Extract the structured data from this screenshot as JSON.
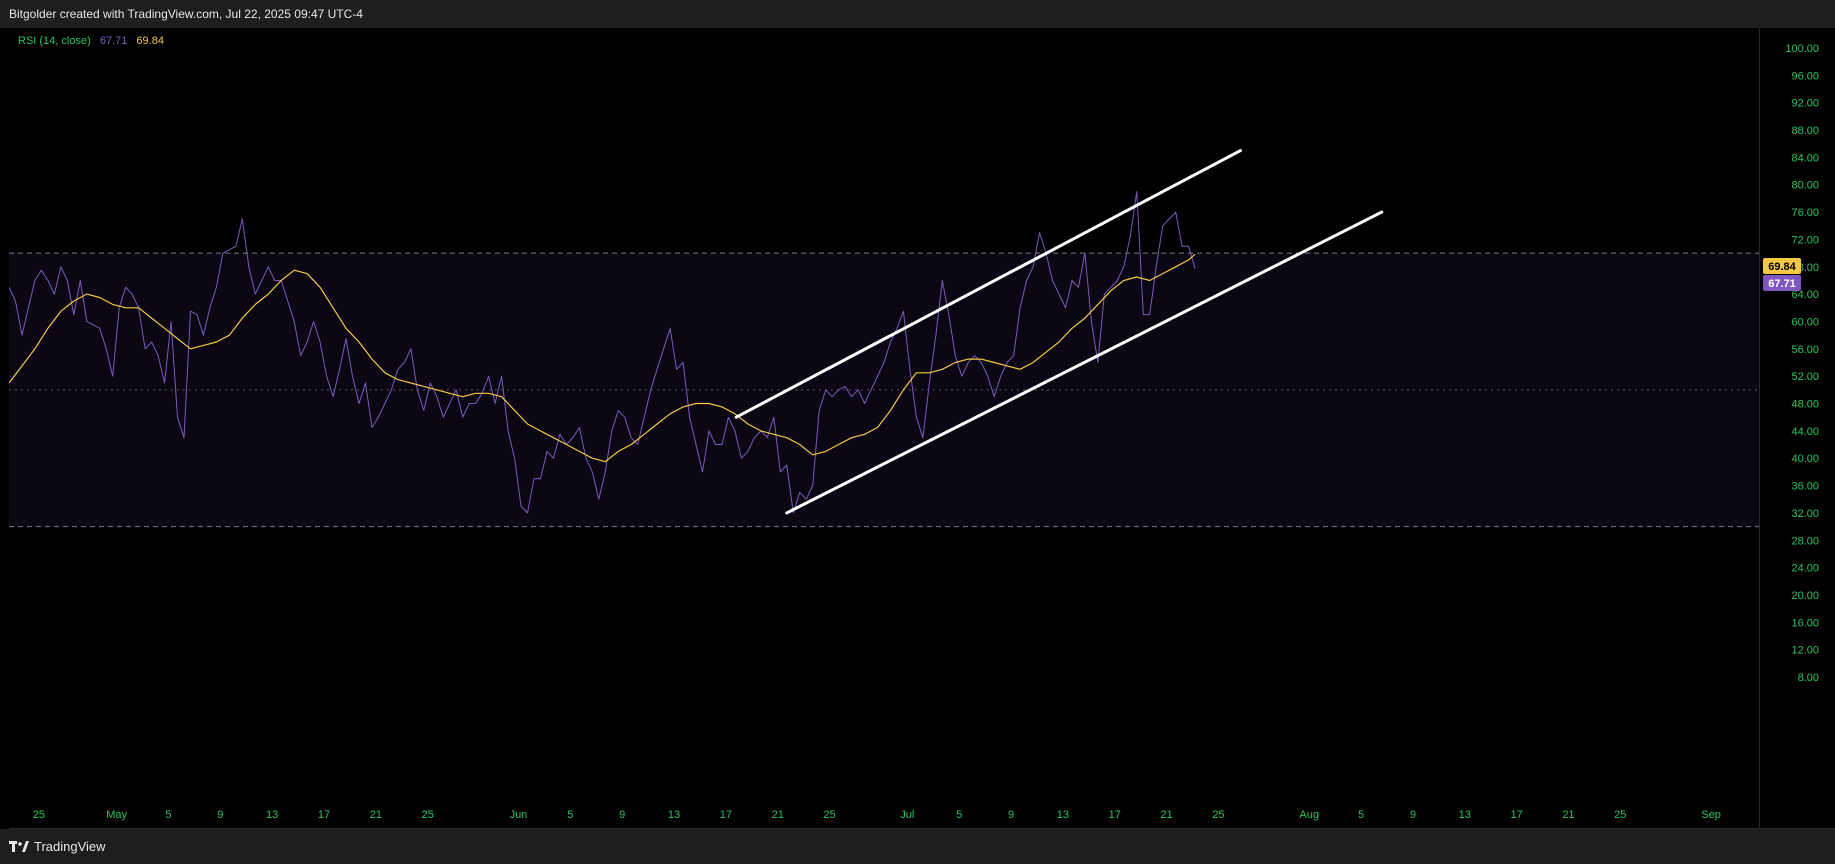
{
  "header": {
    "caption": "Bitgolder created with TradingView.com, Jul 22, 2025 09:47 UTC-4"
  },
  "footer": {
    "brand": "TradingView"
  },
  "colors": {
    "rsi": "#7e57c2",
    "ma": "#f5c842",
    "axis_text": "#22c55e",
    "channel": "#ffffff",
    "band_fill": "#0b0814",
    "ma_badge": "#f5c842",
    "rsi_badge": "#7e57c2"
  },
  "legend": {
    "indicator": "RSI (14, close)",
    "rsi_value": "67.71",
    "ma_value": "69.84"
  },
  "chart_data": {
    "type": "line",
    "ylim": [
      8,
      100
    ],
    "y_ticks": [
      "100.00",
      "96.00",
      "92.00",
      "88.00",
      "84.00",
      "80.00",
      "76.00",
      "72.00",
      "68.00",
      "64.00",
      "60.00",
      "56.00",
      "52.00",
      "48.00",
      "44.00",
      "40.00",
      "36.00",
      "32.00",
      "28.00",
      "24.00",
      "20.00",
      "16.00",
      "12.00",
      "8.00"
    ],
    "x_ticks": [
      {
        "label": "25",
        "day": 0
      },
      {
        "label": "May",
        "day": 6
      },
      {
        "label": "5",
        "day": 10
      },
      {
        "label": "9",
        "day": 14
      },
      {
        "label": "13",
        "day": 18
      },
      {
        "label": "17",
        "day": 22
      },
      {
        "label": "21",
        "day": 26
      },
      {
        "label": "25",
        "day": 30
      },
      {
        "label": "Jun",
        "day": 37
      },
      {
        "label": "5",
        "day": 41
      },
      {
        "label": "9",
        "day": 45
      },
      {
        "label": "13",
        "day": 49
      },
      {
        "label": "17",
        "day": 53
      },
      {
        "label": "21",
        "day": 57
      },
      {
        "label": "25",
        "day": 61
      },
      {
        "label": "Jul",
        "day": 67
      },
      {
        "label": "5",
        "day": 71
      },
      {
        "label": "9",
        "day": 75
      },
      {
        "label": "13",
        "day": 79
      },
      {
        "label": "17",
        "day": 83
      },
      {
        "label": "21",
        "day": 87
      },
      {
        "label": "25",
        "day": 91
      },
      {
        "label": "Aug",
        "day": 98
      },
      {
        "label": "5",
        "day": 102
      },
      {
        "label": "9",
        "day": 106
      },
      {
        "label": "13",
        "day": 110
      },
      {
        "label": "17",
        "day": 114
      },
      {
        "label": "21",
        "day": 118
      },
      {
        "label": "25",
        "day": 122
      },
      {
        "label": "Sep",
        "day": 129
      }
    ],
    "x_domain": [
      -2.3,
      132.7
    ],
    "levels": {
      "upper": 70,
      "middle": 50,
      "lower": 30
    },
    "series": [
      {
        "key": "rsi",
        "values": [
          [
            -2.3,
            65
          ],
          [
            -1.8,
            63
          ],
          [
            -1.3,
            58
          ],
          [
            -0.8,
            62
          ],
          [
            -0.3,
            66
          ],
          [
            0.2,
            67.5
          ],
          [
            0.7,
            66
          ],
          [
            1.2,
            64
          ],
          [
            1.7,
            68
          ],
          [
            2.2,
            66
          ],
          [
            2.7,
            61
          ],
          [
            3.2,
            66
          ],
          [
            3.7,
            60
          ],
          [
            4.2,
            59.5
          ],
          [
            4.7,
            59
          ],
          [
            5.2,
            56
          ],
          [
            5.7,
            52
          ],
          [
            6.2,
            62
          ],
          [
            6.7,
            65
          ],
          [
            7.2,
            64
          ],
          [
            7.7,
            62
          ],
          [
            8.2,
            56
          ],
          [
            8.7,
            57
          ],
          [
            9.2,
            55
          ],
          [
            9.7,
            51
          ],
          [
            10.2,
            60
          ],
          [
            10.7,
            46
          ],
          [
            11.2,
            43
          ],
          [
            11.7,
            61.5
          ],
          [
            12.2,
            61
          ],
          [
            12.7,
            58
          ],
          [
            13.2,
            62
          ],
          [
            13.7,
            65
          ],
          [
            14.2,
            70
          ],
          [
            14.7,
            70.5
          ],
          [
            15.2,
            71
          ],
          [
            15.7,
            75
          ],
          [
            16.2,
            68
          ],
          [
            16.7,
            64
          ],
          [
            17.2,
            66
          ],
          [
            17.7,
            68
          ],
          [
            18.2,
            66
          ],
          [
            18.7,
            66
          ],
          [
            19.2,
            63
          ],
          [
            19.7,
            60
          ],
          [
            20.2,
            55
          ],
          [
            20.7,
            57
          ],
          [
            21.2,
            60
          ],
          [
            21.7,
            57
          ],
          [
            22.2,
            52
          ],
          [
            22.7,
            49
          ],
          [
            23.2,
            53
          ],
          [
            23.7,
            57.5
          ],
          [
            24.2,
            52
          ],
          [
            24.7,
            48
          ],
          [
            25.2,
            51
          ],
          [
            25.7,
            44.5
          ],
          [
            26.2,
            46
          ],
          [
            26.7,
            48
          ],
          [
            27.2,
            50
          ],
          [
            27.7,
            53
          ],
          [
            28.2,
            54
          ],
          [
            28.7,
            56
          ],
          [
            29.2,
            50
          ],
          [
            29.7,
            47
          ],
          [
            30.2,
            51
          ],
          [
            30.7,
            49
          ],
          [
            31.2,
            46
          ],
          [
            31.7,
            48
          ],
          [
            32.2,
            50
          ],
          [
            32.7,
            46
          ],
          [
            33.2,
            48
          ],
          [
            33.7,
            48
          ],
          [
            34.2,
            49.5
          ],
          [
            34.7,
            52
          ],
          [
            35.2,
            48
          ],
          [
            35.7,
            52
          ],
          [
            36.2,
            44
          ],
          [
            36.7,
            40
          ],
          [
            37.2,
            33
          ],
          [
            37.7,
            32
          ],
          [
            38.2,
            37
          ],
          [
            38.7,
            37
          ],
          [
            39.2,
            41
          ],
          [
            39.7,
            40
          ],
          [
            40.2,
            43.5
          ],
          [
            40.7,
            42
          ],
          [
            41.2,
            43
          ],
          [
            41.7,
            44.5
          ],
          [
            42.2,
            40
          ],
          [
            42.7,
            38
          ],
          [
            43.2,
            34
          ],
          [
            43.7,
            38
          ],
          [
            44.2,
            44
          ],
          [
            44.7,
            47
          ],
          [
            45.2,
            46
          ],
          [
            45.7,
            43
          ],
          [
            46.2,
            42
          ],
          [
            46.7,
            46
          ],
          [
            47.2,
            50
          ],
          [
            47.7,
            53
          ],
          [
            48.2,
            56
          ],
          [
            48.7,
            59
          ],
          [
            49.2,
            53
          ],
          [
            49.7,
            54
          ],
          [
            50.2,
            46
          ],
          [
            50.7,
            42
          ],
          [
            51.2,
            38
          ],
          [
            51.7,
            44
          ],
          [
            52.2,
            42
          ],
          [
            52.7,
            42
          ],
          [
            53.2,
            46
          ],
          [
            53.7,
            44
          ],
          [
            54.2,
            40
          ],
          [
            54.7,
            41
          ],
          [
            55.2,
            43
          ],
          [
            55.7,
            44
          ],
          [
            56.2,
            43
          ],
          [
            56.7,
            46
          ],
          [
            57.2,
            38
          ],
          [
            57.7,
            39
          ],
          [
            58.2,
            32
          ],
          [
            58.7,
            35
          ],
          [
            59.2,
            34
          ],
          [
            59.7,
            36
          ],
          [
            60.2,
            47
          ],
          [
            60.7,
            50
          ],
          [
            61.2,
            49
          ],
          [
            61.7,
            50
          ],
          [
            62.2,
            50.5
          ],
          [
            62.7,
            49
          ],
          [
            63.2,
            50
          ],
          [
            63.7,
            48
          ],
          [
            64.2,
            50
          ],
          [
            64.7,
            52
          ],
          [
            65.2,
            54
          ],
          [
            65.7,
            57
          ],
          [
            66.2,
            59
          ],
          [
            66.7,
            61.5
          ],
          [
            67.2,
            53
          ],
          [
            67.7,
            46
          ],
          [
            68.2,
            43
          ],
          [
            68.7,
            51
          ],
          [
            69.2,
            58
          ],
          [
            69.7,
            66
          ],
          [
            70.2,
            61
          ],
          [
            70.7,
            55
          ],
          [
            71.2,
            52
          ],
          [
            71.7,
            54
          ],
          [
            72.2,
            55
          ],
          [
            72.7,
            54
          ],
          [
            73.2,
            52
          ],
          [
            73.7,
            49
          ],
          [
            74.2,
            52
          ],
          [
            74.7,
            54
          ],
          [
            75.2,
            55
          ],
          [
            75.7,
            62
          ],
          [
            76.2,
            66
          ],
          [
            76.7,
            68
          ],
          [
            77.2,
            73
          ],
          [
            77.7,
            70
          ],
          [
            78.2,
            66
          ],
          [
            78.7,
            64
          ],
          [
            79.2,
            62
          ],
          [
            79.7,
            66
          ],
          [
            80.2,
            65
          ],
          [
            80.7,
            70
          ],
          [
            81.2,
            60
          ],
          [
            81.7,
            54
          ],
          [
            82.2,
            64
          ],
          [
            82.7,
            65
          ],
          [
            83.2,
            66
          ],
          [
            83.7,
            68
          ],
          [
            84.2,
            72.5
          ],
          [
            84.7,
            79
          ],
          [
            85.2,
            61
          ],
          [
            85.7,
            61
          ],
          [
            86.2,
            68
          ],
          [
            86.7,
            74
          ],
          [
            87.2,
            75
          ],
          [
            87.7,
            76
          ],
          [
            88.2,
            71
          ],
          [
            88.7,
            71
          ],
          [
            89.2,
            67.7
          ]
        ]
      },
      {
        "key": "ma",
        "values": [
          [
            -2.3,
            51
          ],
          [
            -1.3,
            53.5
          ],
          [
            -0.3,
            56
          ],
          [
            0.7,
            59
          ],
          [
            1.7,
            61.5
          ],
          [
            2.7,
            63
          ],
          [
            3.7,
            64
          ],
          [
            4.7,
            63.5
          ],
          [
            5.7,
            62.5
          ],
          [
            6.7,
            62
          ],
          [
            7.7,
            62
          ],
          [
            8.7,
            60.5
          ],
          [
            9.7,
            59
          ],
          [
            10.7,
            57.5
          ],
          [
            11.7,
            56
          ],
          [
            12.7,
            56.5
          ],
          [
            13.7,
            57
          ],
          [
            14.7,
            58
          ],
          [
            15.7,
            60.5
          ],
          [
            16.7,
            62.5
          ],
          [
            17.7,
            64
          ],
          [
            18.7,
            66
          ],
          [
            19.7,
            67.5
          ],
          [
            20.7,
            67
          ],
          [
            21.7,
            65
          ],
          [
            22.7,
            62
          ],
          [
            23.7,
            59
          ],
          [
            24.7,
            57
          ],
          [
            25.7,
            54.5
          ],
          [
            26.7,
            52.5
          ],
          [
            27.7,
            51.5
          ],
          [
            28.7,
            51
          ],
          [
            29.7,
            50.5
          ],
          [
            30.7,
            50
          ],
          [
            31.7,
            49.5
          ],
          [
            32.7,
            49
          ],
          [
            33.7,
            49.5
          ],
          [
            34.7,
            49.5
          ],
          [
            35.7,
            49
          ],
          [
            36.7,
            47
          ],
          [
            37.7,
            45
          ],
          [
            38.7,
            44
          ],
          [
            39.7,
            43
          ],
          [
            40.7,
            42
          ],
          [
            41.7,
            41
          ],
          [
            42.7,
            40
          ],
          [
            43.7,
            39.5
          ],
          [
            44.7,
            41
          ],
          [
            45.7,
            42
          ],
          [
            46.7,
            43.5
          ],
          [
            47.7,
            45
          ],
          [
            48.7,
            46.5
          ],
          [
            49.7,
            47.5
          ],
          [
            50.7,
            48
          ],
          [
            51.7,
            48
          ],
          [
            52.7,
            47.5
          ],
          [
            53.7,
            46.5
          ],
          [
            54.7,
            45
          ],
          [
            55.7,
            44
          ],
          [
            56.7,
            43.5
          ],
          [
            57.7,
            43
          ],
          [
            58.7,
            42
          ],
          [
            59.7,
            40.5
          ],
          [
            60.7,
            41
          ],
          [
            61.7,
            42
          ],
          [
            62.7,
            43
          ],
          [
            63.7,
            43.5
          ],
          [
            64.7,
            44.5
          ],
          [
            65.7,
            47
          ],
          [
            66.7,
            50
          ],
          [
            67.7,
            52.5
          ],
          [
            68.7,
            52.5
          ],
          [
            69.7,
            53
          ],
          [
            70.7,
            54
          ],
          [
            71.7,
            54.5
          ],
          [
            72.7,
            54.5
          ],
          [
            73.7,
            54
          ],
          [
            74.7,
            53.5
          ],
          [
            75.7,
            53
          ],
          [
            76.7,
            54
          ],
          [
            77.7,
            55.5
          ],
          [
            78.7,
            57
          ],
          [
            79.7,
            59
          ],
          [
            80.7,
            60.5
          ],
          [
            81.7,
            62.5
          ],
          [
            82.7,
            64.5
          ],
          [
            83.7,
            66
          ],
          [
            84.7,
            66.5
          ],
          [
            85.7,
            66
          ],
          [
            86.7,
            67
          ],
          [
            87.7,
            68
          ],
          [
            88.7,
            69
          ],
          [
            89.2,
            69.84
          ]
        ]
      }
    ],
    "channel": [
      {
        "from": [
          53.8,
          46
        ],
        "to": [
          92.7,
          85
        ]
      },
      {
        "from": [
          57.7,
          32
        ],
        "to": [
          103.6,
          76
        ]
      }
    ],
    "last_values": {
      "ma": "69.84",
      "rsi": "67.71"
    }
  }
}
